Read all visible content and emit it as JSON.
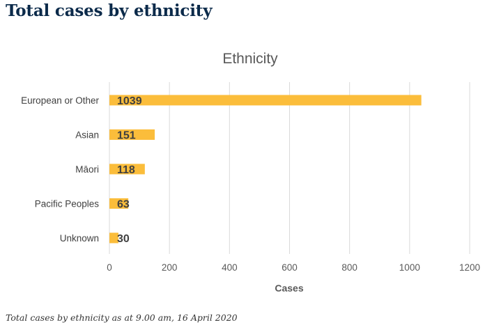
{
  "heading": "Total cases by ethnicity",
  "caption": "Total cases by ethnicity as at 9.00 am, 16 April 2020",
  "colors": {
    "bar": "#fbbd3b",
    "grid": "#d9d9d9",
    "heading": "#0b2a4a"
  },
  "chart_data": {
    "type": "bar",
    "orientation": "horizontal",
    "title": "Ethnicity",
    "xlabel": "Cases",
    "ylabel": "",
    "categories": [
      "European or Other",
      "Asian",
      "Māori",
      "Pacific Peoples",
      "Unknown"
    ],
    "values": [
      1039,
      151,
      118,
      63,
      30
    ],
    "data_labels": [
      "1039",
      "151",
      "118",
      "63",
      "30"
    ],
    "xlim": [
      0,
      1200
    ],
    "xticks": [
      0,
      200,
      400,
      600,
      800,
      1000,
      1200
    ],
    "grid": "vertical",
    "legend": "none"
  }
}
